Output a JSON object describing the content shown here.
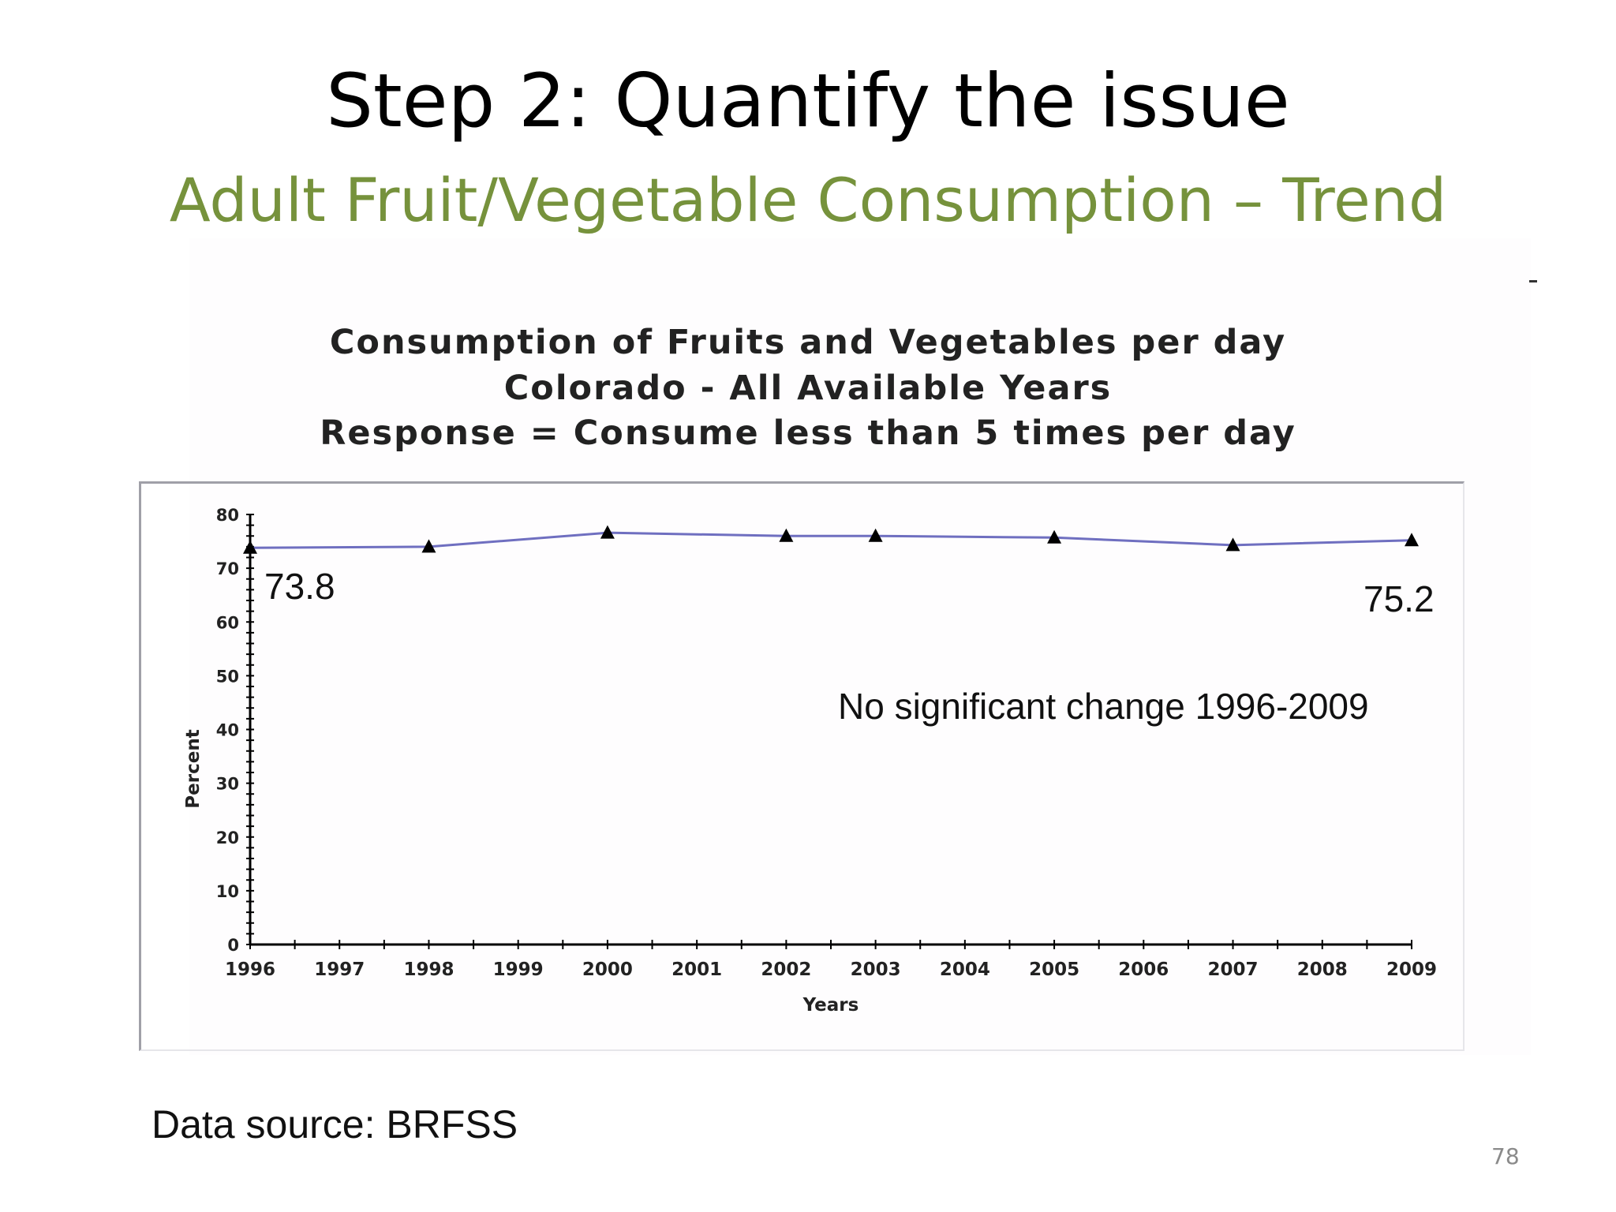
{
  "slide": {
    "title": "Step 2: Quantify the issue",
    "subtitle": "Adult Fruit/Vegetable Consumption – Trend",
    "data_source": "Data source: BRFSS",
    "page_number": "78"
  },
  "colors": {
    "subtitle": "#76923c",
    "series_line": "#6f6fc0",
    "marker": "#000000",
    "axis": "#000000"
  },
  "annotations": {
    "start_value": "73.8",
    "end_value": "75.2",
    "note": "No significant change 1996-2009"
  },
  "chart_data": {
    "type": "line",
    "title_lines": [
      "Consumption of Fruits and Vegetables per day",
      "Colorado - All Available Years",
      "Response = Consume less than 5 times per day"
    ],
    "xlabel": "Years",
    "ylabel": "Percent",
    "x_ticks": [
      "1996",
      "1997",
      "1998",
      "1999",
      "2000",
      "2001",
      "2002",
      "2003",
      "2004",
      "2005",
      "2006",
      "2007",
      "2008",
      "2009"
    ],
    "y_ticks": [
      "0",
      "10",
      "20",
      "30",
      "40",
      "50",
      "60",
      "70",
      "80"
    ],
    "ylim": [
      0,
      80
    ],
    "xlim": [
      1996,
      2009
    ],
    "grid": false,
    "legend": "none",
    "marker": "triangle",
    "series": [
      {
        "x": [
          1996,
          1998,
          2000,
          2002,
          2003,
          2005,
          2007,
          2009
        ],
        "values": [
          73.8,
          74.0,
          76.6,
          76.0,
          76.0,
          75.7,
          74.3,
          75.2
        ]
      }
    ]
  }
}
